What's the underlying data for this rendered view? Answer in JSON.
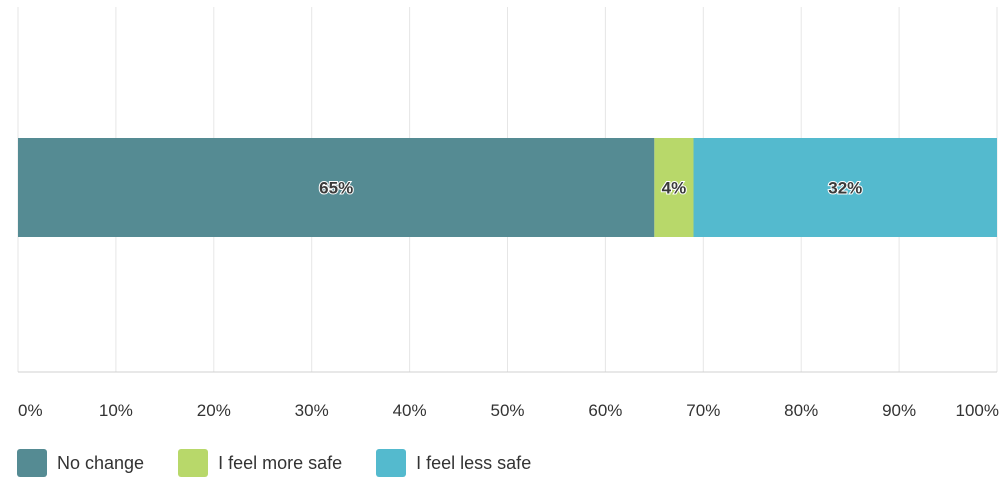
{
  "chart_data": {
    "type": "bar",
    "orientation": "horizontal",
    "stacked": true,
    "categories": [
      ""
    ],
    "series": [
      {
        "name": "No change",
        "values": [
          65
        ],
        "label": "65%",
        "color": "#558B93"
      },
      {
        "name": "I feel more safe",
        "values": [
          4
        ],
        "label": "4%",
        "color": "#B8D86A"
      },
      {
        "name": "I feel less safe",
        "values": [
          32
        ],
        "label": "32%",
        "color": "#54BACE"
      }
    ],
    "xlim": [
      0,
      100
    ],
    "xticks": [
      "0%",
      "10%",
      "20%",
      "30%",
      "40%",
      "50%",
      "60%",
      "70%",
      "80%",
      "90%",
      "100%"
    ],
    "grid": true,
    "legend_position": "bottom-left",
    "title": "",
    "xlabel": "",
    "ylabel": ""
  }
}
